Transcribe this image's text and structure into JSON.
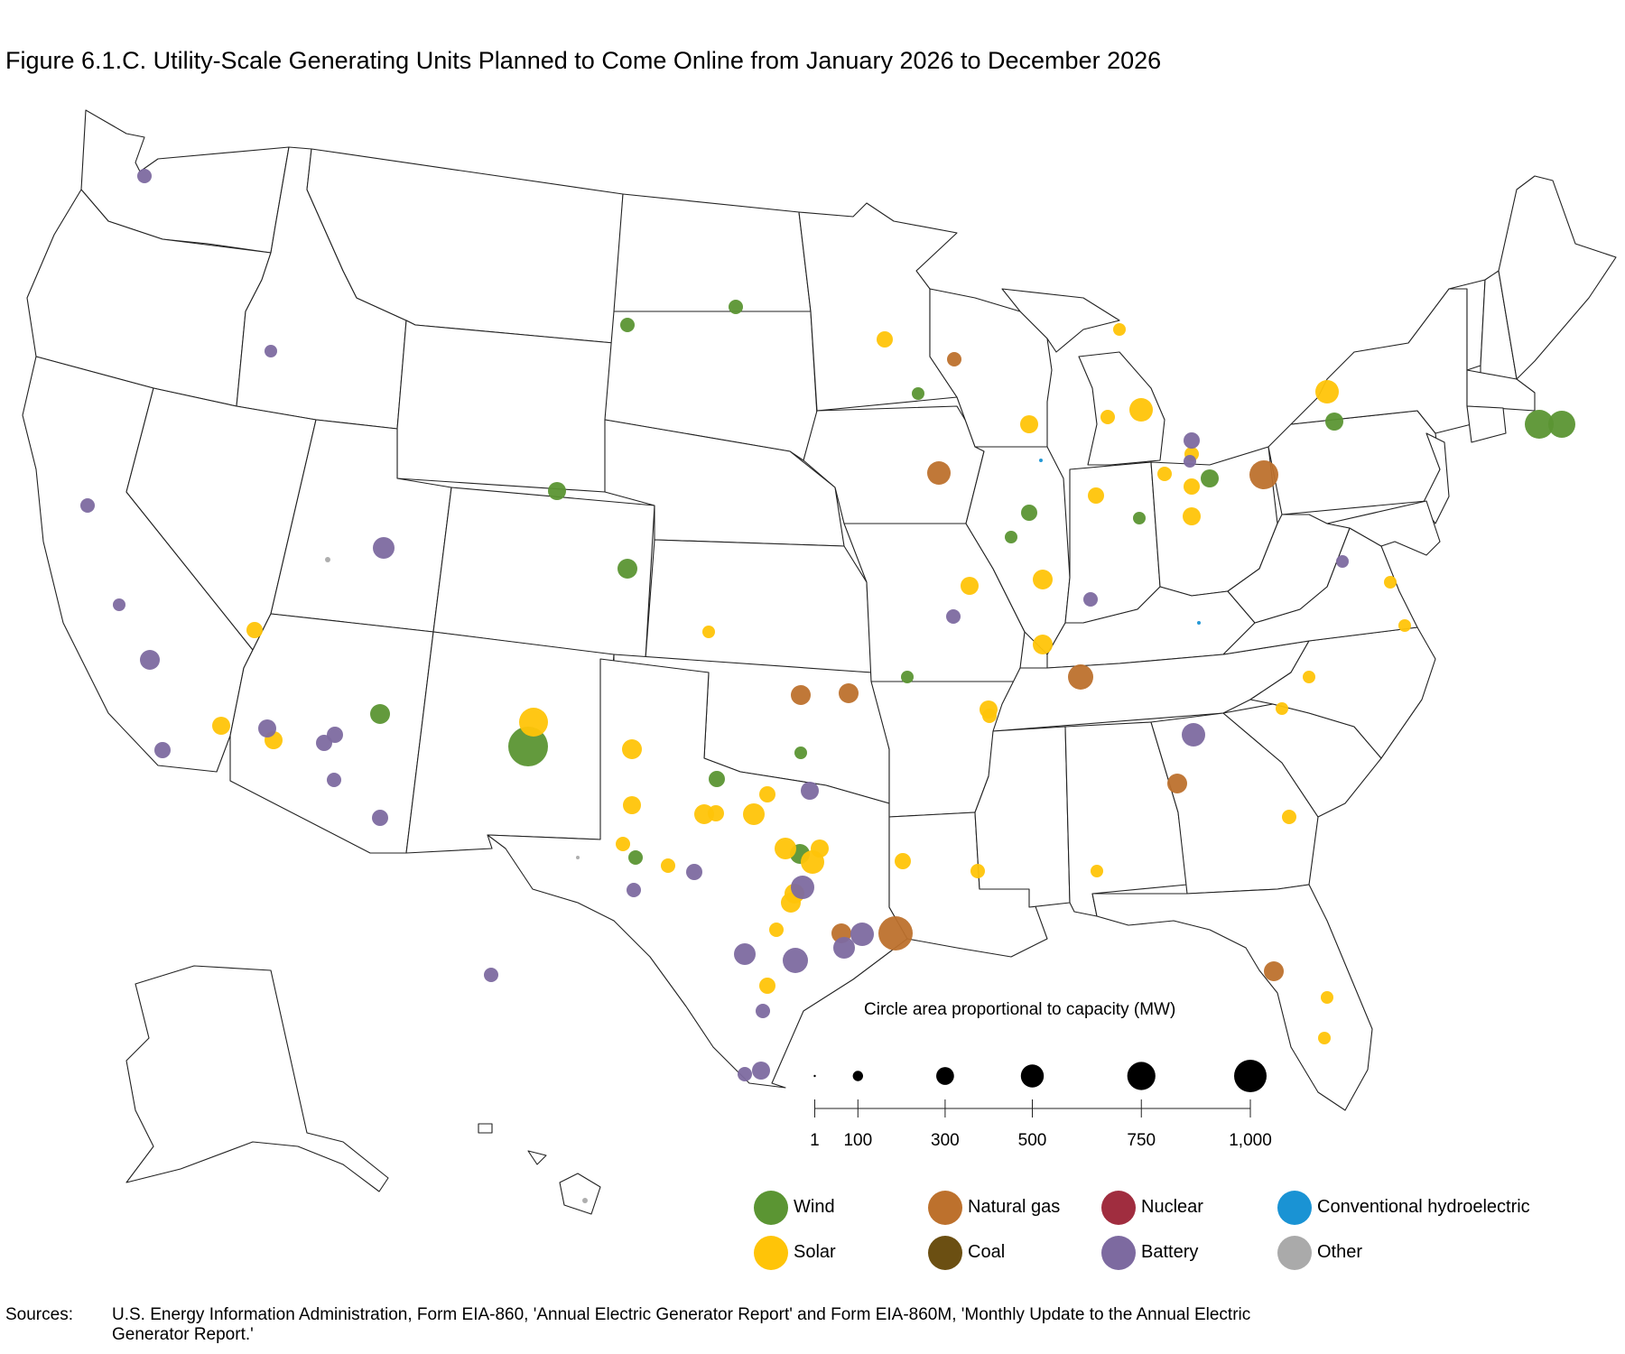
{
  "title": "Figure 6.1.C. Utility-Scale Generating Units Planned to Come Online from January 2026 to December 2026",
  "size_legend": {
    "title": "Circle area proportional to capacity (MW)",
    "values": [
      1,
      100,
      300,
      500,
      750,
      1000
    ],
    "labels": [
      "1",
      "100",
      "300",
      "500",
      "750",
      "1,000"
    ]
  },
  "legend": [
    {
      "label": "Wind",
      "color": "#5b9533"
    },
    {
      "label": "Solar",
      "color": "#ffc408"
    },
    {
      "label": "Natural gas",
      "color": "#bd712d"
    },
    {
      "label": "Coal",
      "color": "#6b4f12"
    },
    {
      "label": "Nuclear",
      "color": "#a02d3f"
    },
    {
      "label": "Battery",
      "color": "#7d6aa0"
    },
    {
      "label": "Conventional hydroelectric",
      "color": "#1a93d4"
    },
    {
      "label": "Other",
      "color": "#aaaaaa"
    }
  ],
  "sources": {
    "label": "Sources:",
    "text": "U.S. Energy Information Administration, Form EIA-860, 'Annual Electric Generator Report' and Form EIA-860M, 'Monthly Update to the Annual Electric Generator Report.'"
  }
}
